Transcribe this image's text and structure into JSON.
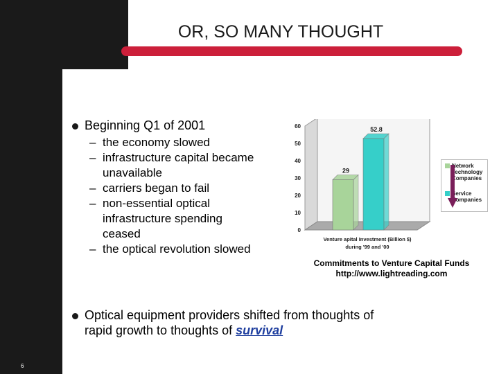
{
  "slide": {
    "title": "OR, SO MANY THOUGHT",
    "number": "6",
    "bullet1": "Beginning Q1 of 2001",
    "sub_items": [
      [
        "the economy slowed"
      ],
      [
        "infrastructure capital became",
        "unavailable"
      ],
      [
        "carriers began to fail"
      ],
      [
        "non-essential optical",
        "infrastructure spending",
        "ceased"
      ],
      [
        "the optical revolution slowed"
      ]
    ],
    "bullet2_line1": "Optical equipment providers shifted from thoughts of",
    "bullet2_line2_prefix": "rapid growth to thoughts of ",
    "bullet2_emphasis": "survival",
    "caption_line1": "Commitments to Venture Capital Funds",
    "caption_line2": "http://www.lightreading.com",
    "colors": {
      "dark": "#1a1a1a",
      "accent_bar": "#cc1f3a",
      "link": "#1f3f9f",
      "series_network": "#a8d49a",
      "series_service": "#36cfc9",
      "arrow": "#7a1f5a"
    }
  },
  "chart_data": {
    "type": "bar",
    "categories": [
      ""
    ],
    "series": [
      {
        "name": "Network Technology Companies",
        "values": [
          29
        ],
        "label": "29",
        "color": "#a8d49a"
      },
      {
        "name": "Service Companies",
        "values": [
          52.8
        ],
        "label": "52.8",
        "color": "#36cfc9"
      }
    ],
    "legend_lines": [
      [
        "Network",
        "Technology",
        "Companies"
      ],
      [
        "Service",
        "Companies"
      ]
    ],
    "yticks": [
      "0",
      "10",
      "20",
      "30",
      "40",
      "50",
      "60"
    ],
    "ylim": [
      0,
      60
    ],
    "xlabel_line1": "Venture apital Investment (Billion $)",
    "xlabel_line2": "during '99 and '00",
    "grid": false,
    "legend_position": "right"
  }
}
